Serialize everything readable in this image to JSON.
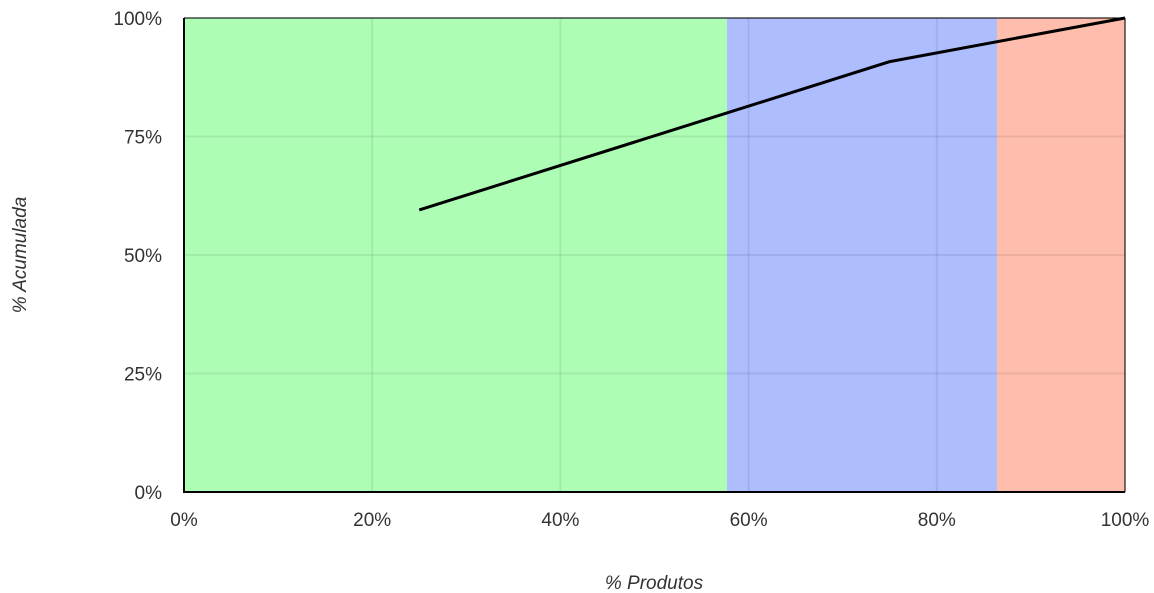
{
  "chart_data": {
    "type": "line",
    "xlabel": "% Produtos",
    "ylabel": "% Acumulada",
    "xlim": [
      0,
      100
    ],
    "ylim": [
      0,
      100
    ],
    "x_ticks": [
      0,
      20,
      40,
      60,
      80,
      100
    ],
    "x_tick_labels": [
      "0%",
      "20%",
      "40%",
      "60%",
      "80%",
      "100%"
    ],
    "y_ticks": [
      0,
      25,
      50,
      75,
      100
    ],
    "y_tick_labels": [
      "0%",
      "25%",
      "50%",
      "75%",
      "100%"
    ],
    "grid": true,
    "regions": [
      {
        "from": 0,
        "to": 57.7,
        "color": "#adfdb5"
      },
      {
        "from": 57.7,
        "to": 86.4,
        "color": "#adbdfd"
      },
      {
        "from": 86.4,
        "to": 100,
        "color": "#febdad"
      }
    ],
    "series": [
      {
        "color": "#000000",
        "x": [
          25,
          75,
          100
        ],
        "y": [
          59.5,
          90.8,
          100
        ]
      }
    ]
  }
}
